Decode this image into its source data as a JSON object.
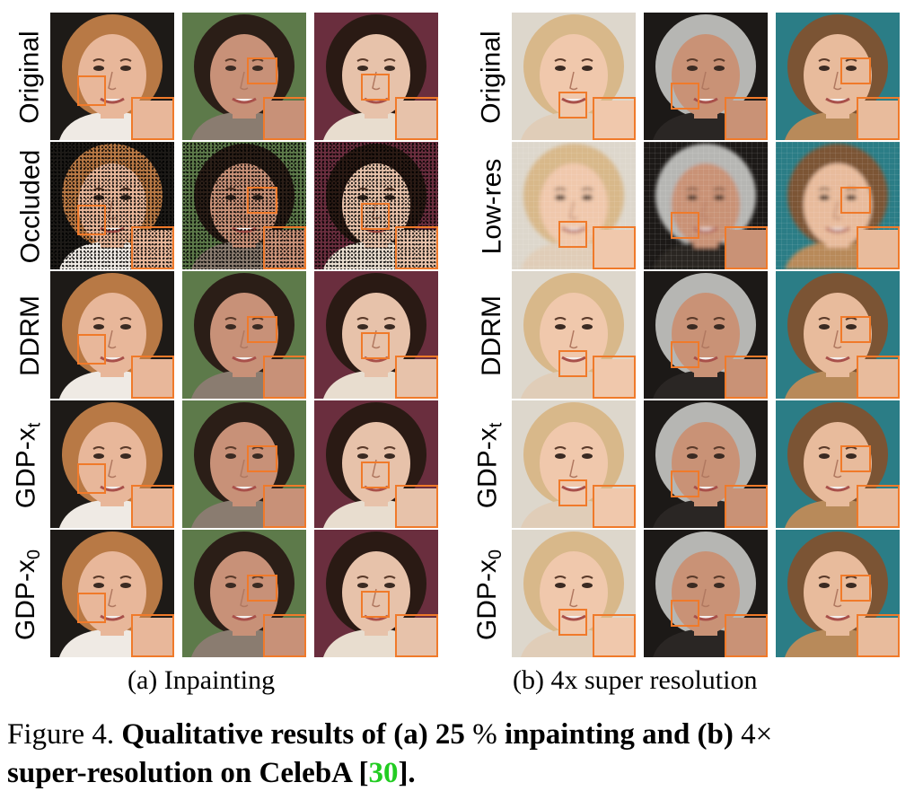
{
  "panels": [
    {
      "id": "a",
      "caption": "(a) Inpainting",
      "rows": [
        {
          "label": "Original",
          "mode": "clean"
        },
        {
          "label": "Occluded",
          "mode": "noise"
        },
        {
          "label": "DDRM",
          "mode": "clean"
        },
        {
          "label": "GDP-x",
          "subscript": "t",
          "mode": "clean"
        },
        {
          "label": "GDP-x",
          "subscript": "0",
          "mode": "clean"
        }
      ],
      "subjects": [
        {
          "name": "woman-red-hair",
          "bg": "#1d1a17",
          "hair": "#b87945",
          "skin": "#e8b79a",
          "shirt": "#efeae4",
          "roi": "cheek"
        },
        {
          "name": "young-man-dark-hair",
          "bg": "#5d7a4a",
          "hair": "#2b1e17",
          "skin": "#c89178",
          "shirt": "#8a7c70",
          "roi": "eye"
        },
        {
          "name": "girl-colorful-bg",
          "bg": "#6a2e3e",
          "hair": "#2a1a14",
          "skin": "#e7c2aa",
          "shirt": "#e8ddcf",
          "roi": "nose"
        }
      ]
    },
    {
      "id": "b",
      "caption": "(b) 4x super resolution",
      "rows": [
        {
          "label": "Original",
          "mode": "clean"
        },
        {
          "label": "Low-res",
          "mode": "pixel"
        },
        {
          "label": "DDRM",
          "mode": "clean"
        },
        {
          "label": "GDP-x",
          "subscript": "t",
          "mode": "clean"
        },
        {
          "label": "GDP-x",
          "subscript": "0",
          "mode": "clean"
        }
      ],
      "subjects": [
        {
          "name": "blonde-woman",
          "bg": "#ddd7cc",
          "hair": "#d8b88a",
          "skin": "#f0c8ac",
          "shirt": "#e0cdb8",
          "roi": "mouth"
        },
        {
          "name": "gray-haired-man",
          "bg": "#1c1917",
          "hair": "#b6b6b3",
          "skin": "#c99276",
          "shirt": "#2a2624",
          "roi": "mouth-side"
        },
        {
          "name": "young-girl",
          "bg": "#2b7d86",
          "hair": "#7b5434",
          "skin": "#e8bb9c",
          "shirt": "#b88a5a",
          "roi": "eye"
        }
      ]
    }
  ],
  "figure_caption": {
    "prefix": "Figure 4.",
    "bold_1": "Qualitative results of (a) 25",
    "percent": "%",
    "bold_2": "inpainting and (b)",
    "factor": "4×",
    "bold_3": "super-resolution on CelebA [",
    "ref": "30",
    "bold_4": "]."
  },
  "colors": {
    "roi": "#f07a2a",
    "ref_link": "#22cc22"
  }
}
